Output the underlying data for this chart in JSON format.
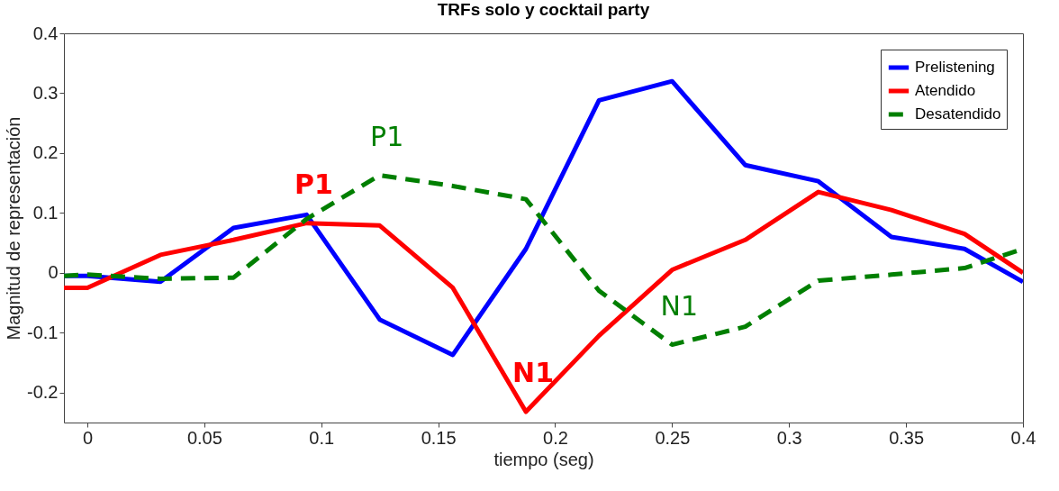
{
  "chart_data": {
    "type": "line",
    "title": "TRFs solo y cocktail party",
    "xlabel": "tiempo (seg)",
    "ylabel": "Magnitud de representación",
    "x": [
      -0.01,
      0,
      0.03125,
      0.0625,
      0.09375,
      0.125,
      0.15625,
      0.1875,
      0.21875,
      0.25,
      0.28125,
      0.3125,
      0.34375,
      0.375,
      0.4
    ],
    "series": [
      {
        "name": "Prelistening",
        "color": "#0000ff",
        "line_style": "solid",
        "values": [
          -0.005,
          -0.005,
          -0.015,
          0.075,
          0.097,
          -0.078,
          -0.137,
          0.04,
          0.288,
          0.32,
          0.18,
          0.153,
          0.06,
          0.04,
          -0.015
        ]
      },
      {
        "name": "Atendido",
        "color": "#ff0000",
        "line_style": "solid",
        "values": [
          -0.025,
          -0.025,
          0.03,
          0.055,
          0.083,
          0.079,
          -0.025,
          -0.232,
          -0.105,
          0.005,
          0.055,
          0.135,
          0.105,
          0.065,
          0.0
        ]
      },
      {
        "name": "Desatendido",
        "color": "#007f00",
        "line_style": "dashed",
        "values": [
          -0.005,
          -0.003,
          -0.01,
          -0.008,
          0.09,
          0.163,
          0.145,
          0.123,
          -0.03,
          -0.12,
          -0.09,
          -0.013,
          -0.003,
          0.008,
          0.04
        ]
      }
    ],
    "annotations": [
      {
        "text": "P1",
        "x": 0.09375,
        "y": 0.083
      },
      {
        "text": "P1",
        "x": 0.125,
        "y": 0.163
      },
      {
        "text": "N1",
        "x": 0.1875,
        "y": -0.232
      },
      {
        "text": "N1",
        "x": 0.25,
        "y": -0.12
      }
    ],
    "xlim": [
      -0.01,
      0.4
    ],
    "ylim": [
      -0.25,
      0.4
    ],
    "xticks": [
      0,
      0.05,
      0.1,
      0.15,
      0.2,
      0.25,
      0.3,
      0.35,
      0.4
    ],
    "yticks": [
      -0.2,
      -0.1,
      0,
      0.1,
      0.2,
      0.3,
      0.4
    ],
    "grid": false,
    "legend": "top right"
  }
}
